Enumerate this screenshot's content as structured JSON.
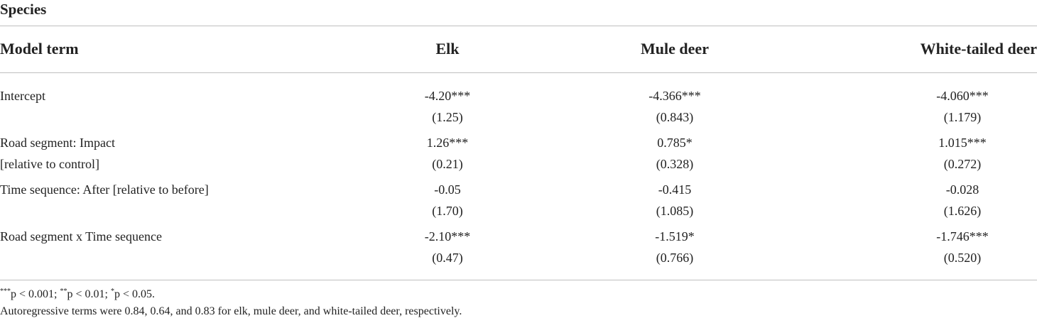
{
  "caption_head": "Species",
  "headers": {
    "term": "Model term",
    "elk": "Elk",
    "mule": "Mule deer",
    "whitetail": "White-tailed deer"
  },
  "rows": [
    {
      "term": [
        "Intercept",
        ""
      ],
      "elk": [
        "-4.20***",
        "(1.25)"
      ],
      "mule": [
        "-4.366***",
        "(0.843)"
      ],
      "whitetail": [
        "-4.060***",
        "(1.179)"
      ]
    },
    {
      "term": [
        "Road segment: Impact",
        "[relative to control]"
      ],
      "elk": [
        "1.26***",
        "(0.21)"
      ],
      "mule": [
        "0.785*",
        "(0.328)"
      ],
      "whitetail": [
        "1.015***",
        "(0.272)"
      ]
    },
    {
      "term": [
        "Time sequence: After [relative to before]",
        ""
      ],
      "elk": [
        "-0.05",
        "(1.70)"
      ],
      "mule": [
        "-0.415",
        "(1.085)"
      ],
      "whitetail": [
        "-0.028",
        "(1.626)"
      ]
    },
    {
      "term": [
        "Road segment x Time sequence",
        ""
      ],
      "elk": [
        "-2.10***",
        "(0.47)"
      ],
      "mule": [
        "-1.519*",
        "(0.766)"
      ],
      "whitetail": [
        "-1.746***",
        "(0.520)"
      ]
    }
  ],
  "footnotes": {
    "significance": {
      "s1": "***",
      "t1": "p < 0.001; ",
      "s2": "**",
      "t2": "p < 0.01; ",
      "s3": "*",
      "t3": "p < 0.05."
    },
    "autoregressive": "Autoregressive terms were 0.84, 0.64, and 0.83 for elk, mule deer, and white-tailed deer, respectively."
  }
}
